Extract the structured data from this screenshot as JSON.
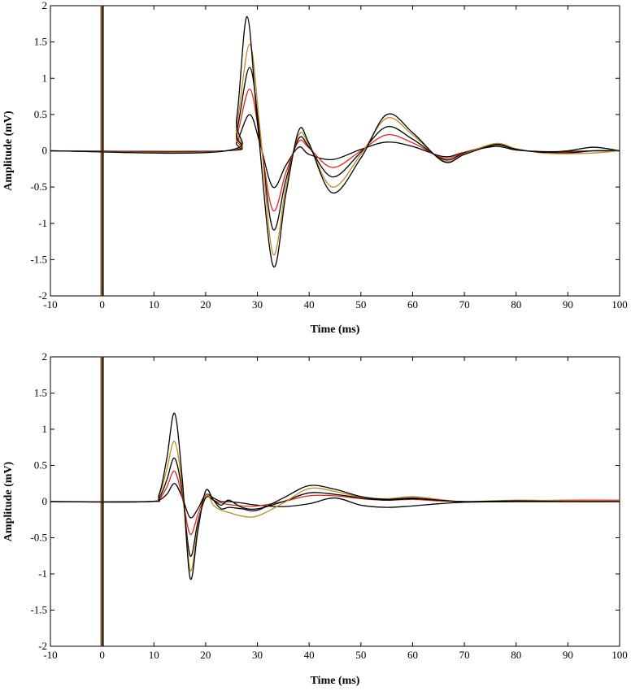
{
  "colors": {
    "black": "#000000",
    "gold": "#C08A1E",
    "red": "#E0281E",
    "green": "#2E7D1E"
  },
  "chart_data": [
    {
      "type": "line",
      "xlabel": "Time (ms)",
      "ylabel": "Amplitude (mV)",
      "xlim": [
        -10,
        100
      ],
      "ylim": [
        -2,
        2
      ],
      "xticks": [
        -10,
        0,
        10,
        20,
        30,
        40,
        50,
        60,
        70,
        80,
        90,
        100
      ],
      "yticks": [
        -2,
        -1.5,
        -1,
        -0.5,
        0,
        0.5,
        1,
        1.5,
        2
      ],
      "xtick_labels": [
        "-10",
        "0",
        "10",
        "20",
        "30",
        "40",
        "50",
        "60",
        "70",
        "80",
        "90",
        "100"
      ],
      "ytick_labels": [
        "-2",
        "-1.5",
        "-1",
        "-0.5",
        "0",
        "0.5",
        "1",
        "1.5",
        "2"
      ],
      "grid": false,
      "stimulus_artifact_x": 0,
      "series": [
        {
          "color": "#000000",
          "x": [
            -10,
            24,
            26,
            28,
            30,
            33,
            35.5,
            38,
            40,
            44.5,
            50,
            55,
            60,
            66,
            70,
            76,
            80,
            85,
            90,
            95,
            100
          ],
          "y": [
            0,
            0,
            0.45,
            1.85,
            0.4,
            -1.58,
            -0.6,
            0.28,
            0.1,
            -0.58,
            -0.1,
            0.5,
            0.25,
            -0.15,
            -0.05,
            0.08,
            0.02,
            -0.02,
            0.0,
            0.05,
            0.0
          ]
        },
        {
          "color": "#C08A1E",
          "x": [
            -10,
            24,
            26,
            28.5,
            30.5,
            33,
            35.5,
            38,
            40,
            44.5,
            50,
            55,
            60,
            66,
            70,
            76,
            80,
            85,
            90,
            95,
            100
          ],
          "y": [
            0,
            0,
            0.35,
            1.47,
            0.3,
            -1.42,
            -0.5,
            0.22,
            0.08,
            -0.5,
            -0.05,
            0.45,
            0.22,
            -0.14,
            -0.04,
            0.1,
            0.03,
            -0.03,
            -0.04,
            -0.03,
            0.0
          ]
        },
        {
          "color": "#000000",
          "x": [
            -10,
            24,
            26,
            28.5,
            30.5,
            33,
            35.5,
            38,
            40,
            44.5,
            50,
            55,
            60,
            66,
            70,
            76,
            80,
            85,
            90,
            95,
            100
          ],
          "y": [
            0,
            0,
            0.27,
            1.15,
            0.22,
            -1.08,
            -0.4,
            0.17,
            0.05,
            -0.36,
            -0.02,
            0.33,
            0.16,
            -0.12,
            -0.03,
            0.09,
            0.02,
            -0.02,
            -0.03,
            0.0,
            0.0
          ]
        },
        {
          "color": "#E0281E",
          "x": [
            -10,
            24,
            26,
            28.5,
            30.5,
            33,
            35.5,
            38,
            40,
            44.5,
            50,
            55,
            60,
            66,
            70,
            76,
            80,
            85,
            90,
            95,
            100
          ],
          "y": [
            0,
            0,
            0.2,
            0.85,
            0.16,
            -0.82,
            -0.3,
            0.13,
            0.04,
            -0.23,
            0.0,
            0.22,
            0.11,
            -0.1,
            -0.02,
            0.08,
            0.02,
            -0.02,
            -0.02,
            0.0,
            0.0
          ]
        },
        {
          "color": "#000000",
          "x": [
            -10,
            24,
            26,
            28.5,
            30.5,
            33,
            35.5,
            38,
            40,
            44.5,
            50,
            55,
            60,
            66,
            70,
            76,
            80,
            85,
            90,
            95,
            100
          ],
          "y": [
            0,
            0,
            0.12,
            0.5,
            0.1,
            -0.5,
            -0.2,
            0.05,
            -0.05,
            -0.12,
            0.02,
            0.12,
            0.06,
            -0.08,
            -0.02,
            0.06,
            0.01,
            -0.01,
            -0.01,
            0.0,
            0.0
          ]
        }
      ]
    },
    {
      "type": "line",
      "xlabel": "Time (ms)",
      "ylabel": "Amplitude (mV)",
      "xlim": [
        -10,
        100
      ],
      "ylim": [
        -2,
        2
      ],
      "xticks": [
        -10,
        0,
        10,
        20,
        30,
        40,
        50,
        60,
        70,
        80,
        90,
        100
      ],
      "yticks": [
        -2,
        -1.5,
        -1,
        -0.5,
        0,
        0.5,
        1,
        1.5,
        2
      ],
      "xtick_labels": [
        "-10",
        "0",
        "10",
        "20",
        "30",
        "40",
        "50",
        "60",
        "70",
        "80",
        "90",
        "100"
      ],
      "ytick_labels": [
        "-2",
        "-1.5",
        "-1",
        "-0.5",
        "0",
        "0.5",
        "1",
        "1.5",
        "2"
      ],
      "grid": false,
      "stimulus_artifact_x": 0,
      "series": [
        {
          "color": "#000000",
          "x": [
            -10,
            9,
            11,
            12.5,
            14,
            15.5,
            17,
            18.5,
            20,
            21.5,
            23,
            24.5,
            27,
            30,
            35,
            40,
            45,
            50,
            55,
            60,
            65,
            70,
            80,
            90,
            100
          ],
          "y": [
            0,
            0,
            0.1,
            0.6,
            1.22,
            0.3,
            -1.06,
            -0.4,
            0.15,
            0.02,
            -0.1,
            -0.08,
            -0.1,
            -0.12,
            0.05,
            0.22,
            0.17,
            0.07,
            0.03,
            0.05,
            0.02,
            0.0,
            0.01,
            0.0,
            0.0
          ]
        },
        {
          "color": "#C08A1E",
          "x": [
            -10,
            9,
            11,
            12.5,
            14,
            15.5,
            17,
            18.5,
            20,
            21.5,
            23,
            24.5,
            27,
            30,
            35,
            40,
            45,
            50,
            55,
            60,
            65,
            70,
            80,
            90,
            100
          ],
          "y": [
            0,
            0,
            0.08,
            0.45,
            0.83,
            0.2,
            -0.95,
            -0.35,
            0.1,
            -0.05,
            -0.12,
            -0.15,
            -0.2,
            -0.2,
            -0.02,
            0.18,
            0.14,
            0.06,
            0.04,
            0.07,
            0.03,
            0.0,
            0.02,
            0.01,
            0.0
          ]
        },
        {
          "color": "#000000",
          "x": [
            -10,
            9,
            11,
            12.5,
            14,
            15.5,
            17,
            18.5,
            20,
            21.5,
            23,
            24.5,
            27,
            30,
            35,
            40,
            45,
            50,
            55,
            60,
            65,
            70,
            80,
            90,
            100
          ],
          "y": [
            0,
            0,
            0.05,
            0.3,
            0.6,
            0.12,
            -0.75,
            -0.28,
            0.05,
            0.02,
            -0.05,
            0.02,
            -0.08,
            -0.1,
            0.0,
            0.12,
            0.1,
            0.05,
            0.02,
            0.04,
            0.02,
            0.0,
            0.0,
            0.0,
            0.0
          ]
        },
        {
          "color": "#E0281E",
          "x": [
            -10,
            9,
            11,
            12.5,
            14,
            15.5,
            17,
            18.5,
            20,
            21.5,
            23,
            24.5,
            27,
            30,
            35,
            40,
            45,
            50,
            55,
            60,
            65,
            70,
            80,
            90,
            100
          ],
          "y": [
            0,
            0,
            0.03,
            0.2,
            0.42,
            0.05,
            -0.45,
            -0.18,
            0.08,
            0.02,
            -0.02,
            -0.04,
            -0.06,
            -0.06,
            0.0,
            0.08,
            0.08,
            0.04,
            0.02,
            0.03,
            0.01,
            0.0,
            0.01,
            0.02,
            0.02
          ]
        },
        {
          "color": "#000000",
          "x": [
            -10,
            9,
            11,
            12.5,
            14,
            15.5,
            17,
            18.5,
            20,
            21.5,
            23,
            24.5,
            27,
            30,
            35,
            40,
            45,
            50,
            55,
            60,
            65,
            70,
            80,
            90,
            100
          ],
          "y": [
            0,
            0,
            0.02,
            0.1,
            0.25,
            0.05,
            -0.22,
            -0.1,
            0.1,
            0.05,
            0.0,
            0.0,
            -0.02,
            -0.05,
            -0.07,
            -0.03,
            0.05,
            -0.05,
            -0.08,
            -0.06,
            -0.03,
            -0.01,
            0.0,
            0.0,
            0.0
          ]
        }
      ]
    }
  ]
}
